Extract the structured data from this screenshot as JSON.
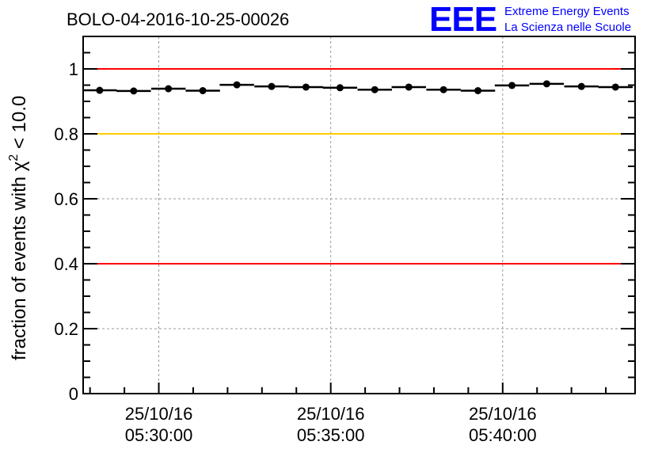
{
  "chart_data": {
    "type": "scatter",
    "title": "BOLO-04-2016-10-25-00026",
    "ylabel": "fraction of events with",
    "ylabel_chi": "χ",
    "ylabel_sup": "2",
    "ylabel_tail": " < 10.0",
    "ylim": [
      0,
      1.1
    ],
    "xlim_minutes": [
      -2.2,
      13.85
    ],
    "x_minutes_from_0530": [
      -1.72,
      -0.73,
      0.28,
      1.28,
      2.27,
      3.28,
      4.28,
      5.27,
      6.28,
      7.27,
      8.28,
      9.28,
      10.27,
      11.28,
      12.29,
      13.28
    ],
    "values": [
      0.934,
      0.932,
      0.939,
      0.933,
      0.951,
      0.946,
      0.944,
      0.942,
      0.936,
      0.944,
      0.936,
      0.933,
      0.949,
      0.954,
      0.946,
      0.944
    ],
    "yticks": [
      "0",
      "0.2",
      "0.4",
      "0.6",
      "0.8",
      "1"
    ],
    "ytick_values": [
      0,
      0.2,
      0.4,
      0.6,
      0.8,
      1.0
    ],
    "xticks": [
      {
        "minute": 0,
        "date": "25/10/16",
        "time": "05:30:00"
      },
      {
        "minute": 5,
        "date": "25/10/16",
        "time": "05:35:00"
      },
      {
        "minute": 10,
        "date": "25/10/16",
        "time": "05:40:00"
      }
    ],
    "hlines": [
      {
        "y": 1.0,
        "color": "#ff0000"
      },
      {
        "y": 0.8,
        "color": "#ffcc00"
      },
      {
        "y": 0.4,
        "color": "#ff0000"
      }
    ],
    "grid": true
  },
  "logo": {
    "letters": "EEE",
    "line1": "Extreme Energy Events",
    "line2": "La Scienza nelle Scuole",
    "color": "#0000ff"
  }
}
